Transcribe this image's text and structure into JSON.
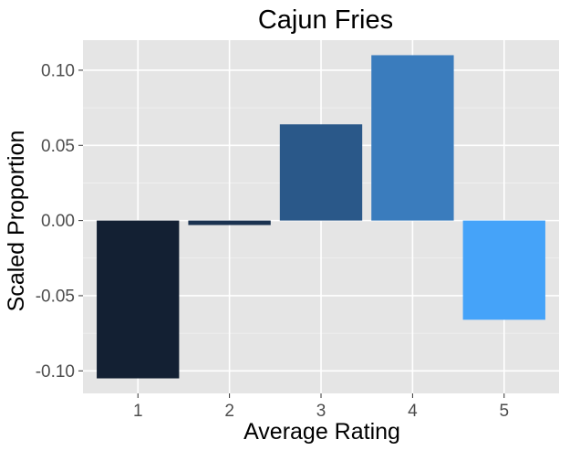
{
  "chart_data": {
    "type": "bar",
    "title": "Cajun Fries",
    "xlabel": "Average Rating",
    "ylabel": "Scaled Proportion",
    "categories": [
      "1",
      "2",
      "3",
      "4",
      "5"
    ],
    "values": [
      -0.105,
      -0.003,
      0.064,
      0.11,
      -0.066
    ],
    "colors": [
      "#132033",
      "#1a3250",
      "#2a5889",
      "#3a7cbd",
      "#45a3f9"
    ],
    "ylim": [
      -0.115,
      0.12
    ],
    "yticks": [
      -0.1,
      -0.05,
      0.0,
      0.05,
      0.1
    ],
    "ytick_labels": [
      "-0.10",
      "-0.05",
      "0.00",
      "0.05",
      "0.10"
    ],
    "grid": true,
    "legend": "none",
    "panel_background": "#e5e5e5"
  }
}
